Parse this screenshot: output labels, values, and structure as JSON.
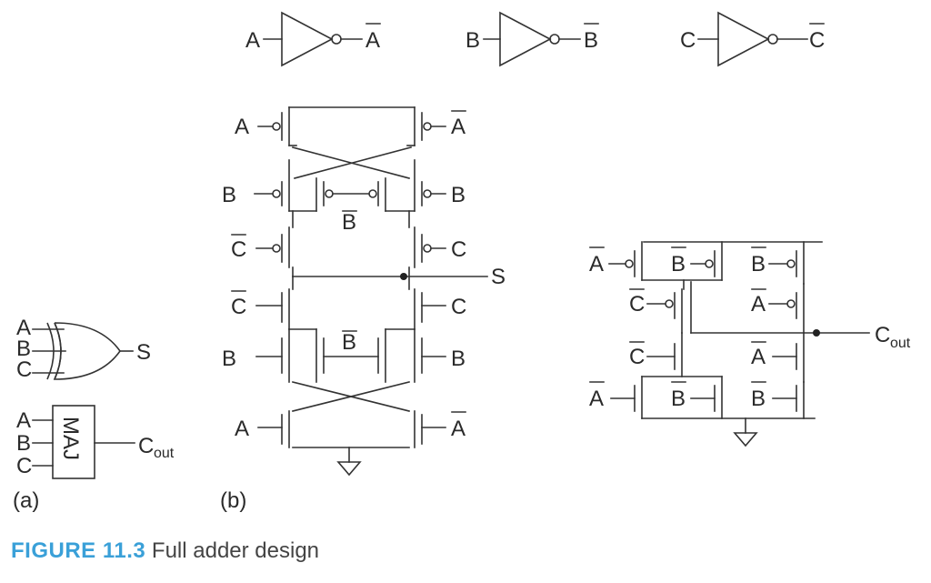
{
  "caption": {
    "number": "FIGURE 11.3",
    "text": "Full adder design"
  },
  "inverters": [
    {
      "input": "A",
      "output": "A"
    },
    {
      "input": "B",
      "output": "B"
    },
    {
      "input": "C",
      "output": "C"
    }
  ],
  "panel_a": {
    "label": "(a)",
    "xor_inputs": [
      "A",
      "B",
      "C"
    ],
    "xor_output": "S",
    "maj_inputs": [
      "A",
      "B",
      "C"
    ],
    "maj_box": "MAJ",
    "maj_output_main": "C",
    "maj_output_sub": "out"
  },
  "panel_b": {
    "label": "(b)",
    "sum_output": "S",
    "signals": {
      "a_left": "A",
      "a_right": "A",
      "b_left": "B",
      "b_right": "B",
      "b_mid": "B",
      "c_left": "C",
      "c_right": "C"
    }
  },
  "carry": {
    "output_main": "C",
    "output_sub": "out",
    "signals": {
      "a": "A",
      "b": "B",
      "c": "C"
    }
  }
}
